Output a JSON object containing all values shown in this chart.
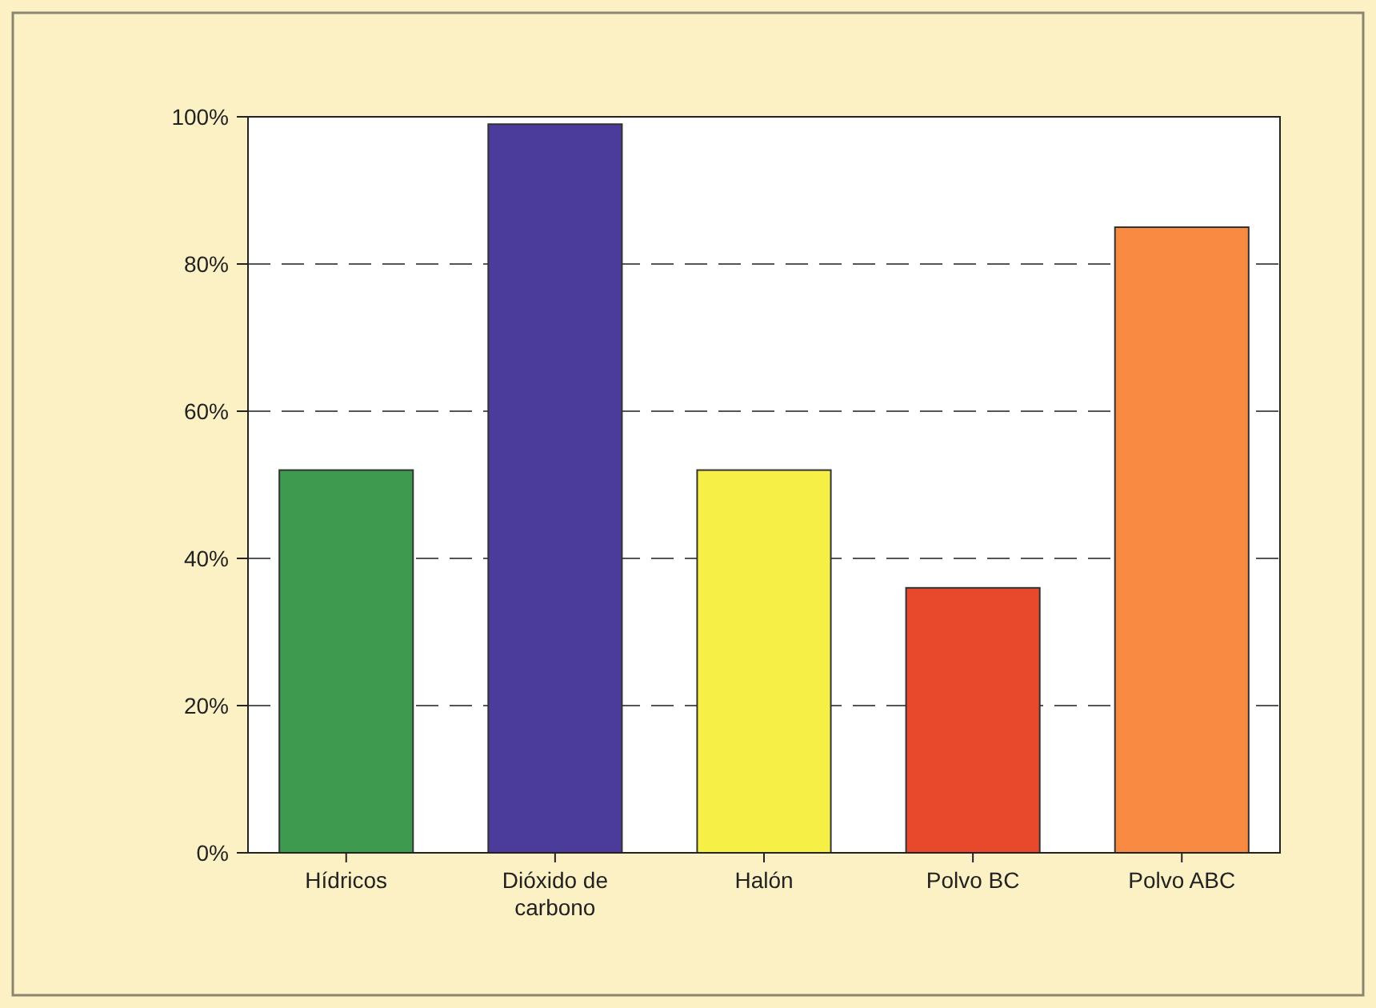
{
  "chart_data": {
    "type": "bar",
    "categories": [
      "Hídricos",
      "Dióxido de carbono",
      "Halón",
      "Polvo BC",
      "Polvo ABC"
    ],
    "values": [
      52,
      99,
      52,
      36,
      85
    ],
    "colors": [
      "#3d9a4e",
      "#4b3c9c",
      "#f6f046",
      "#e8482c",
      "#f98a42"
    ],
    "ylim": [
      0,
      100
    ],
    "yticks": [
      {
        "value": 0,
        "label": "0%"
      },
      {
        "value": 20,
        "label": "20%"
      },
      {
        "value": 40,
        "label": "40%"
      },
      {
        "value": 60,
        "label": "60%"
      },
      {
        "value": 80,
        "label": "80%"
      },
      {
        "value": 100,
        "label": "100%"
      }
    ],
    "grid": "y"
  }
}
